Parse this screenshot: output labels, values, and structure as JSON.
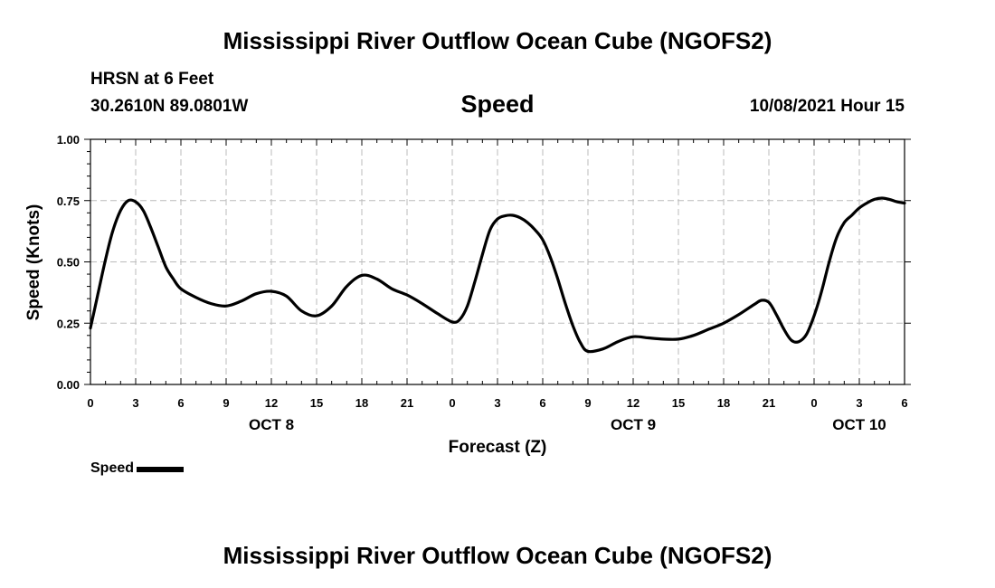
{
  "header": {
    "title": "Mississippi River Outflow Ocean Cube (NGOFS2)",
    "station": "HRSN at 6 Feet",
    "coordinates": "30.2610N  89.0801W",
    "variable": "Speed",
    "datetime": "10/08/2021 Hour 15"
  },
  "footer": {
    "title": "Mississippi River Outflow Ocean Cube (NGOFS2)"
  },
  "legend": {
    "label": "Speed"
  },
  "colors": {
    "line": "#000000",
    "grid": "#bbbbbb"
  },
  "chart_data": {
    "type": "line",
    "xlabel": "Forecast (Z)",
    "ylabel": "Speed (Knots)",
    "ylim": [
      0,
      1.0
    ],
    "xlim": [
      0,
      54
    ],
    "grid": true,
    "legend_position": "bottom-left",
    "yticks": [
      "0.00",
      "0.25",
      "0.50",
      "0.75",
      "1.00"
    ],
    "ytick_values": [
      0,
      0.25,
      0.5,
      0.75,
      1.0
    ],
    "xtick_values": [
      0,
      3,
      6,
      9,
      12,
      15,
      18,
      21,
      24,
      27,
      30,
      33,
      36,
      39,
      42,
      45,
      48,
      51,
      54
    ],
    "xticks": [
      "0",
      "3",
      "6",
      "9",
      "12",
      "15",
      "18",
      "21",
      "0",
      "3",
      "6",
      "9",
      "12",
      "15",
      "18",
      "21",
      "0",
      "3",
      "6"
    ],
    "day_labels": [
      {
        "label": "OCT 8",
        "x": 12
      },
      {
        "label": "OCT 9",
        "x": 36
      },
      {
        "label": "OCT 10",
        "x": 51
      }
    ],
    "series": [
      {
        "name": "Speed",
        "x": [
          0,
          0.5,
          1,
          1.5,
          2,
          2.5,
          3,
          3.5,
          4,
          4.5,
          5,
          5.5,
          6,
          7,
          8,
          9,
          10,
          11,
          12,
          13,
          14,
          15,
          16,
          17,
          18,
          19,
          20,
          21,
          22,
          23,
          24,
          24.5,
          25,
          25.5,
          26,
          26.5,
          27,
          27.5,
          28,
          28.5,
          29,
          29.5,
          30,
          30.5,
          31,
          31.5,
          32,
          32.5,
          33,
          34,
          35,
          36,
          37,
          38,
          39,
          40,
          41,
          42,
          43,
          44,
          44.5,
          45,
          45.5,
          46,
          46.5,
          47,
          47.5,
          48,
          48.5,
          49,
          49.5,
          50,
          50.5,
          51,
          51.5,
          52,
          52.5,
          53,
          53.5,
          54
        ],
        "y": [
          0.23,
          0.37,
          0.51,
          0.63,
          0.71,
          0.75,
          0.745,
          0.71,
          0.64,
          0.56,
          0.48,
          0.43,
          0.39,
          0.355,
          0.33,
          0.32,
          0.34,
          0.37,
          0.38,
          0.36,
          0.3,
          0.28,
          0.32,
          0.4,
          0.445,
          0.43,
          0.39,
          0.365,
          0.33,
          0.29,
          0.255,
          0.265,
          0.32,
          0.42,
          0.53,
          0.63,
          0.675,
          0.688,
          0.69,
          0.68,
          0.66,
          0.63,
          0.59,
          0.52,
          0.43,
          0.33,
          0.24,
          0.17,
          0.135,
          0.145,
          0.175,
          0.195,
          0.19,
          0.185,
          0.185,
          0.2,
          0.225,
          0.25,
          0.285,
          0.325,
          0.343,
          0.335,
          0.285,
          0.225,
          0.18,
          0.175,
          0.205,
          0.28,
          0.38,
          0.5,
          0.6,
          0.66,
          0.69,
          0.72,
          0.74,
          0.755,
          0.76,
          0.755,
          0.745,
          0.74
        ]
      }
    ]
  }
}
